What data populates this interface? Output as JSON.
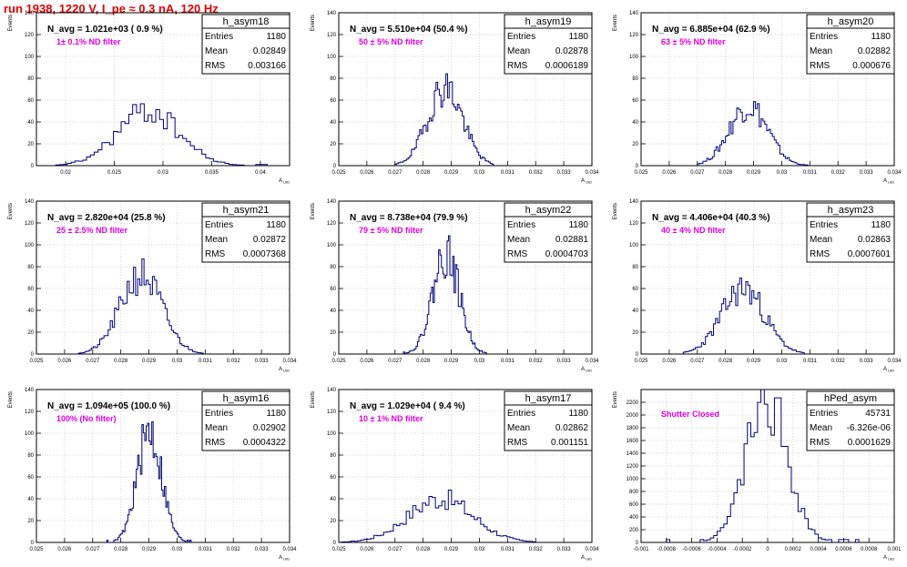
{
  "page": {
    "title": "run 1938,  1220 V, I_pe ≈ 0.3 nA, 120 Hz"
  },
  "colors": {
    "title": "#e00000",
    "histogram": "#000080",
    "annotation": "#e000e0",
    "grid": "#c8c8c8",
    "frame": "#000000"
  },
  "common": {
    "ylabel": "Events",
    "xlabel": "A_UID",
    "stat_labels": [
      "Entries",
      "Mean",
      "RMS"
    ]
  },
  "chart_data": [
    {
      "type": "histogram",
      "name": "h_asym18",
      "navg": "N_avg = 1.021e+03 ( 0.9 %)",
      "note": "1± 0.1% ND filter",
      "entries": "1180",
      "mean": "0.02849",
      "rms": "0.003166",
      "xlim": [
        0.017,
        0.043
      ],
      "ylim": [
        0,
        140
      ],
      "xticks": [
        0.02,
        0.025,
        0.03,
        0.035,
        0.04
      ],
      "xtick_labels": [
        "0.02",
        "0.025",
        "0.03",
        "0.035",
        "0.04"
      ],
      "yticks": [
        0,
        20,
        40,
        60,
        80,
        100,
        120,
        140
      ],
      "ytick_labels": [
        "0",
        "20",
        "40",
        "60",
        "80",
        "100",
        "120",
        "140"
      ],
      "xmin_hist": 0.0178,
      "xmax_hist": 0.0415,
      "mu": 0.02849,
      "sigma": 0.003166,
      "peak": 50,
      "seed": 18
    },
    {
      "type": "histogram",
      "name": "h_asym19",
      "navg": "N_avg = 5.510e+04 (50.4 %)",
      "note": "50 ± 5% ND filter",
      "entries": "1180",
      "mean": "0.02878",
      "rms": "0.0006189",
      "xlim": [
        0.025,
        0.034
      ],
      "ylim": [
        0,
        140
      ],
      "xticks": [
        0.025,
        0.026,
        0.027,
        0.028,
        0.029,
        0.03,
        0.031,
        0.032,
        0.033,
        0.034
      ],
      "xtick_labels": [
        "0.025",
        "0.026",
        "0.027",
        "0.028",
        "0.029",
        "0.03",
        "0.031",
        "0.032",
        "0.033",
        "0.034"
      ],
      "yticks": [
        0,
        20,
        40,
        60,
        80,
        100,
        120,
        140
      ],
      "ytick_labels": [
        "0",
        "20",
        "40",
        "60",
        "80",
        "100",
        "120",
        "140"
      ],
      "xmin_hist": 0.027,
      "xmax_hist": 0.0305,
      "mu": 0.02878,
      "sigma": 0.0006189,
      "peak": 72,
      "seed": 19
    },
    {
      "type": "histogram",
      "name": "h_asym20",
      "navg": "N_avg = 6.885e+04 (62.9 %)",
      "note": "63 ± 5% ND filter",
      "entries": "1180",
      "mean": "0.02882",
      "rms": "0.000676",
      "xlim": [
        0.025,
        0.034
      ],
      "ylim": [
        0,
        140
      ],
      "xticks": [
        0.025,
        0.026,
        0.027,
        0.028,
        0.029,
        0.03,
        0.031,
        0.032,
        0.033,
        0.034
      ],
      "xtick_labels": [
        "0.025",
        "0.026",
        "0.027",
        "0.028",
        "0.029",
        "0.03",
        "0.031",
        "0.032",
        "0.033",
        "0.034"
      ],
      "yticks": [
        0,
        20,
        40,
        60,
        80,
        100,
        120,
        140
      ],
      "ytick_labels": [
        "0",
        "20",
        "40",
        "60",
        "80",
        "100",
        "120",
        "140"
      ],
      "xmin_hist": 0.027,
      "xmax_hist": 0.031,
      "mu": 0.02882,
      "sigma": 0.000676,
      "peak": 55,
      "seed": 20
    },
    {
      "type": "histogram",
      "name": "h_asym21",
      "navg": "N_avg = 2.820e+04 (25.8 %)",
      "note": "25 ± 2.5% ND filter",
      "entries": "1180",
      "mean": "0.02872",
      "rms": "0.0007368",
      "xlim": [
        0.025,
        0.034
      ],
      "ylim": [
        0,
        140
      ],
      "xticks": [
        0.025,
        0.026,
        0.027,
        0.028,
        0.029,
        0.03,
        0.031,
        0.032,
        0.033,
        0.034
      ],
      "xtick_labels": [
        "0.025",
        "0.026",
        "0.027",
        "0.028",
        "0.029",
        "0.03",
        "0.031",
        "0.032",
        "0.033",
        "0.034"
      ],
      "yticks": [
        0,
        20,
        40,
        60,
        80,
        100,
        120,
        140
      ],
      "ytick_labels": [
        "0",
        "20",
        "40",
        "60",
        "80",
        "100",
        "120",
        "140"
      ],
      "xmin_hist": 0.0265,
      "xmax_hist": 0.031,
      "mu": 0.02872,
      "sigma": 0.0007368,
      "peak": 72,
      "seed": 21
    },
    {
      "type": "histogram",
      "name": "h_asym22",
      "navg": "N_avg = 8.738e+04 (79.9 %)",
      "note": "79 ± 5% ND filter",
      "entries": "1180",
      "mean": "0.02881",
      "rms": "0.0004703",
      "xlim": [
        0.025,
        0.034
      ],
      "ylim": [
        0,
        140
      ],
      "xticks": [
        0.025,
        0.026,
        0.027,
        0.028,
        0.029,
        0.03,
        0.031,
        0.032,
        0.033,
        0.034
      ],
      "xtick_labels": [
        "0.025",
        "0.026",
        "0.027",
        "0.028",
        "0.029",
        "0.03",
        "0.031",
        "0.032",
        "0.033",
        "0.034"
      ],
      "yticks": [
        0,
        20,
        40,
        60,
        80,
        100,
        120,
        140
      ],
      "ytick_labels": [
        "0",
        "20",
        "40",
        "60",
        "80",
        "100",
        "120",
        "140"
      ],
      "xmin_hist": 0.0273,
      "xmax_hist": 0.0303,
      "mu": 0.02881,
      "sigma": 0.0004703,
      "peak": 92,
      "seed": 22
    },
    {
      "type": "histogram",
      "name": "h_asym23",
      "navg": "N_avg = 4.406e+04 (40.3 %)",
      "note": "40 ± 4% ND filter",
      "entries": "1180",
      "mean": "0.02863",
      "rms": "0.0007601",
      "xlim": [
        0.025,
        0.034
      ],
      "ylim": [
        0,
        140
      ],
      "xticks": [
        0.025,
        0.026,
        0.027,
        0.028,
        0.029,
        0.03,
        0.031,
        0.032,
        0.033,
        0.034
      ],
      "xtick_labels": [
        "0.025",
        "0.026",
        "0.027",
        "0.028",
        "0.029",
        "0.03",
        "0.031",
        "0.032",
        "0.033",
        "0.034"
      ],
      "yticks": [
        0,
        20,
        40,
        60,
        80,
        100,
        120,
        140
      ],
      "ytick_labels": [
        "0",
        "20",
        "40",
        "60",
        "80",
        "100",
        "120",
        "140"
      ],
      "xmin_hist": 0.0265,
      "xmax_hist": 0.0308,
      "mu": 0.02863,
      "sigma": 0.0007601,
      "peak": 60,
      "seed": 23
    },
    {
      "type": "histogram",
      "name": "h_asym16",
      "navg": "N_avg = 1.094e+05 (100.0 %)",
      "note": "100% (No filter)",
      "entries": "1180",
      "mean": "0.02902",
      "rms": "0.0004322",
      "xlim": [
        0.025,
        0.034
      ],
      "ylim": [
        0,
        140
      ],
      "xticks": [
        0.025,
        0.026,
        0.027,
        0.028,
        0.029,
        0.03,
        0.031,
        0.032,
        0.033,
        0.034
      ],
      "xtick_labels": [
        "0.025",
        "0.026",
        "0.027",
        "0.028",
        "0.029",
        "0.03",
        "0.031",
        "0.032",
        "0.033",
        "0.034"
      ],
      "yticks": [
        0,
        20,
        40,
        60,
        80,
        100,
        120,
        140
      ],
      "ytick_labels": [
        "0",
        "20",
        "40",
        "60",
        "80",
        "100",
        "120",
        "140"
      ],
      "xmin_hist": 0.0275,
      "xmax_hist": 0.0305,
      "mu": 0.02902,
      "sigma": 0.0004322,
      "peak": 102,
      "seed": 16
    },
    {
      "type": "histogram",
      "name": "h_asym17",
      "navg": "N_avg = 1.029e+04 ( 9.4 %)",
      "note": "10 ± 1% ND filter",
      "entries": "1180",
      "mean": "0.02862",
      "rms": "0.001151",
      "xlim": [
        0.025,
        0.034
      ],
      "ylim": [
        0,
        140
      ],
      "xticks": [
        0.025,
        0.026,
        0.027,
        0.028,
        0.029,
        0.03,
        0.031,
        0.032,
        0.033,
        0.034
      ],
      "xtick_labels": [
        "0.025",
        "0.026",
        "0.027",
        "0.028",
        "0.029",
        "0.03",
        "0.031",
        "0.032",
        "0.033",
        "0.034"
      ],
      "yticks": [
        0,
        20,
        40,
        60,
        80,
        100,
        120,
        140
      ],
      "ytick_labels": [
        "0",
        "20",
        "40",
        "60",
        "80",
        "100",
        "120",
        "140"
      ],
      "xmin_hist": 0.0251,
      "xmax_hist": 0.032,
      "mu": 0.02862,
      "sigma": 0.001151,
      "peak": 40,
      "seed": 17
    },
    {
      "type": "histogram",
      "name": "hPed_asym",
      "navg": "",
      "note": "Shutter Closed",
      "entries": "45731",
      "mean": "-6.326e-06",
      "rms": "0.0001629",
      "xlim": [
        -0.001,
        0.001
      ],
      "ylim": [
        0,
        2400
      ],
      "xticks": [
        -0.001,
        -0.0008,
        -0.0006,
        -0.0004,
        -0.0002,
        0,
        0.0002,
        0.0004,
        0.0006,
        0.0008,
        0.001
      ],
      "xtick_labels": [
        "-0.001",
        "-0.0008",
        "-0.0006",
        "-0.0004",
        "-0.0002",
        "0",
        "0.0002",
        "0.0004",
        "0.0006",
        "0.0008",
        "0.001"
      ],
      "yticks": [
        0,
        200,
        400,
        600,
        800,
        1000,
        1200,
        1400,
        1600,
        1800,
        2000,
        2200
      ],
      "ytick_labels": [
        "0",
        "200",
        "400",
        "600",
        "800",
        "1000",
        "1200",
        "1400",
        "1600",
        "1800",
        "2000",
        "2200"
      ],
      "xmin_hist": -0.0008,
      "xmax_hist": 0.0008,
      "mu": -6.3e-06,
      "sigma": 0.0001629,
      "peak": 2250,
      "seed": 99
    }
  ]
}
